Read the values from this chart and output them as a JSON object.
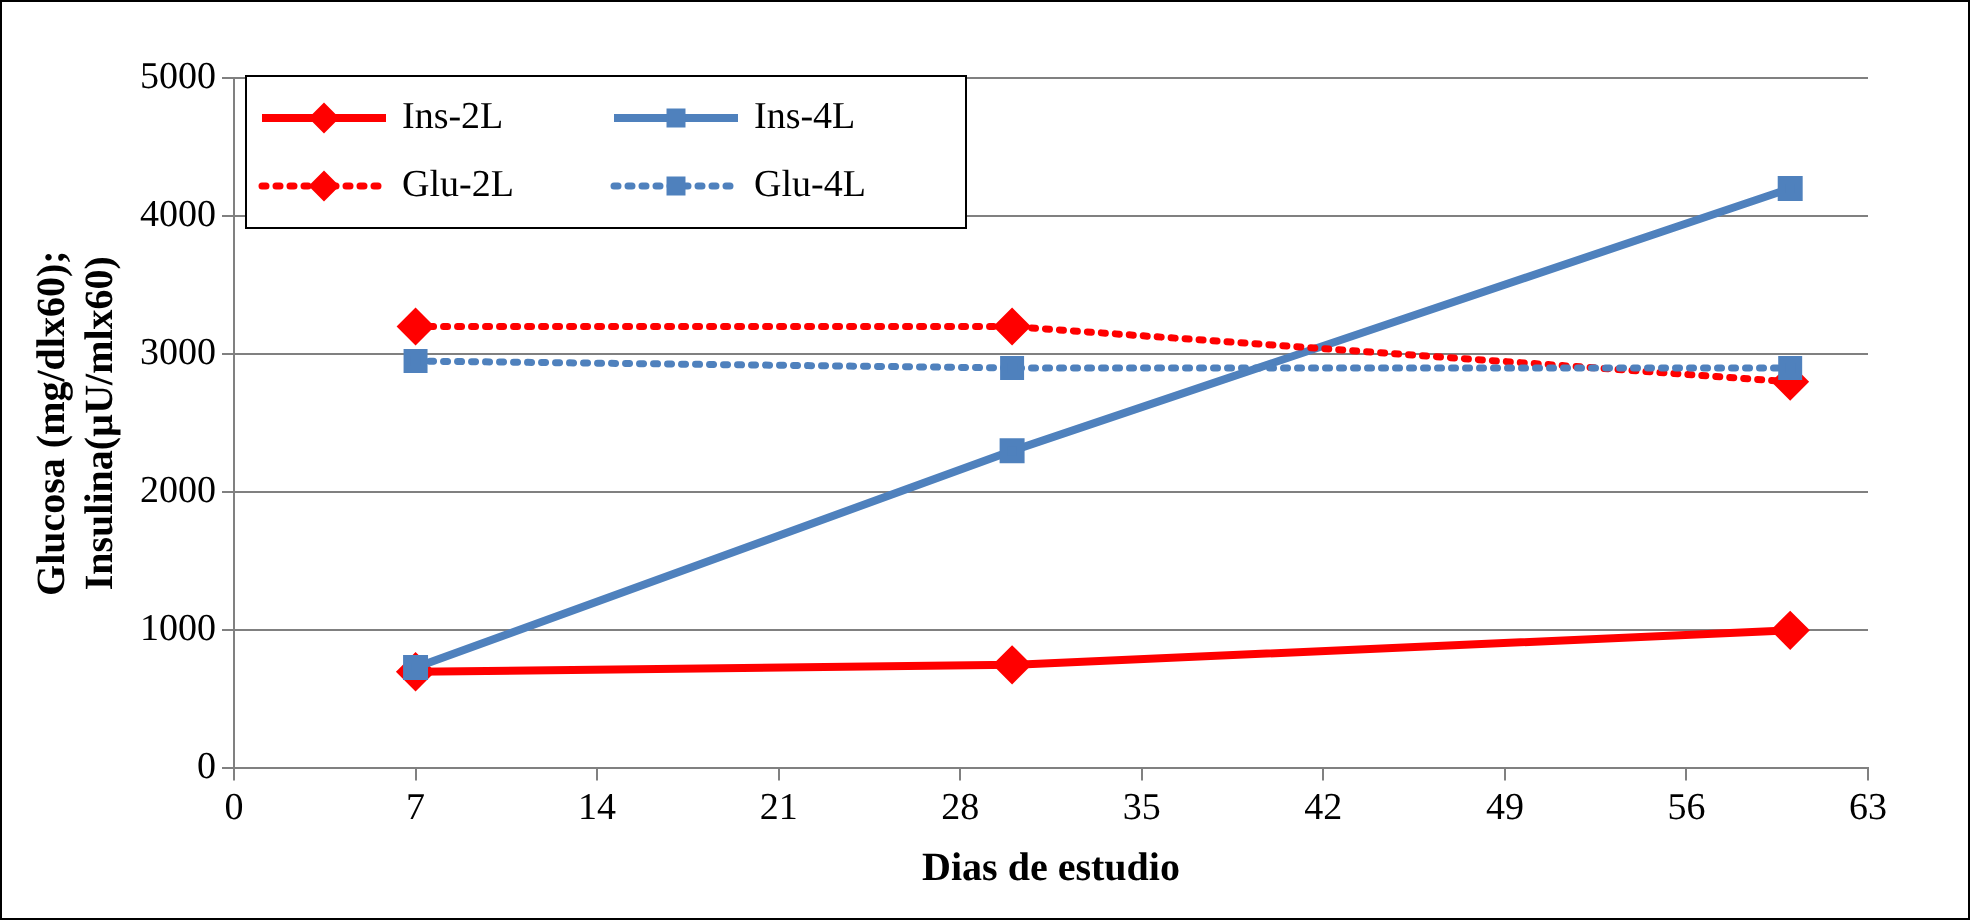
{
  "chart_data": {
    "type": "line",
    "xlabel": "Dias de estudio",
    "ylabel": "Glucosa (mg/dlx60); Insulina(µU/mlx60)",
    "x": [
      7,
      30,
      60
    ],
    "series": [
      {
        "name": "Ins-2L",
        "color": "#ff0000",
        "values": [
          700,
          750,
          1000
        ],
        "marker": "diamond",
        "line_style": "solid"
      },
      {
        "name": "Ins-4L",
        "color": "#4f81bd",
        "values": [
          730,
          2300,
          4200
        ],
        "marker": "square",
        "line_style": "solid"
      },
      {
        "name": "Glu-2L",
        "color": "#ff0000",
        "values": [
          3200,
          3200,
          2800
        ],
        "marker": "diamond",
        "line_style": "dotted"
      },
      {
        "name": "Glu-4L",
        "color": "#4f81bd",
        "values": [
          2950,
          2900,
          2900
        ],
        "marker": "square",
        "line_style": "dotted"
      }
    ],
    "xlim": [
      0,
      63
    ],
    "xticks": [
      0,
      7,
      14,
      21,
      28,
      35,
      42,
      49,
      56,
      63
    ],
    "ylim": [
      0,
      5000
    ],
    "yticks": [
      0,
      1000,
      2000,
      3000,
      4000,
      5000
    ],
    "grid": "y",
    "legend": "top left"
  }
}
